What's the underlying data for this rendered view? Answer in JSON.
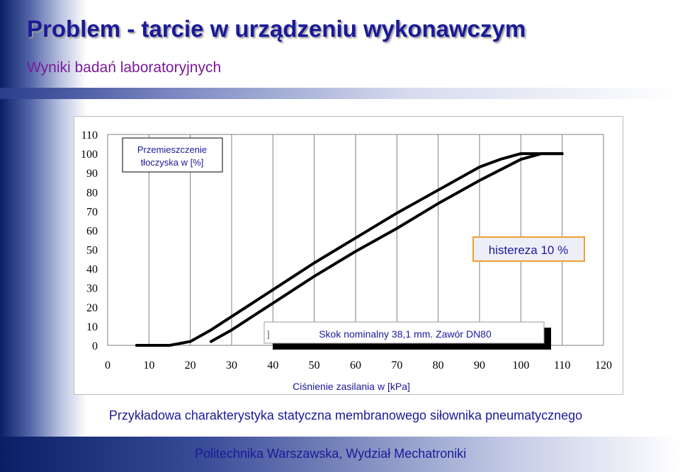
{
  "page": {
    "title": "Problem - tarcie w urządzeniu wykonawczym",
    "subtitle": "Wyniki badań laboratoryjnych",
    "caption": "Przykładowa charakterystyka statyczna membranowego siłownika pneumatycznego",
    "footer": "Politechnika Warszawska, Wydział Mechatroniki"
  },
  "chart_data": {
    "type": "line",
    "title": "",
    "ylabel": "Przemieszczenie tłoczyska  w [%]",
    "xlabel": "Ciśnienie zasilania w [kPa]",
    "xlim": [
      0,
      120
    ],
    "ylim": [
      0,
      110
    ],
    "xticks": [
      "0",
      "10",
      "20",
      "30",
      "40",
      "50",
      "60",
      "70",
      "80",
      "90",
      "100",
      "110",
      "120"
    ],
    "yticks": [
      "0",
      "10",
      "20",
      "30",
      "40",
      "50",
      "60",
      "70",
      "80",
      "90",
      "100",
      "110"
    ],
    "grid": true,
    "series": [
      {
        "values_x": [
          15,
          20,
          25,
          30,
          35,
          40,
          50,
          60,
          70,
          80,
          90,
          95,
          100,
          110
        ],
        "values_y": [
          0,
          2,
          8,
          15,
          22,
          29,
          43,
          56,
          69,
          81,
          93,
          97,
          100,
          100
        ]
      },
      {
        "values_x": [
          25,
          30,
          35,
          40,
          50,
          60,
          70,
          80,
          90,
          100,
          105,
          110
        ],
        "values_y": [
          2,
          8,
          15,
          22,
          36,
          49,
          61,
          74,
          86,
          97,
          100,
          100
        ]
      }
    ],
    "annotations": [
      {
        "text": "histereza 10 %"
      },
      {
        "text": "Skok nominalny 38,1 mm. Zawór DN80"
      },
      {
        "text": "]"
      }
    ],
    "colors": {
      "line": "#000000",
      "grid": "#7f7f7f",
      "annotation_border": "#f0a030"
    }
  }
}
